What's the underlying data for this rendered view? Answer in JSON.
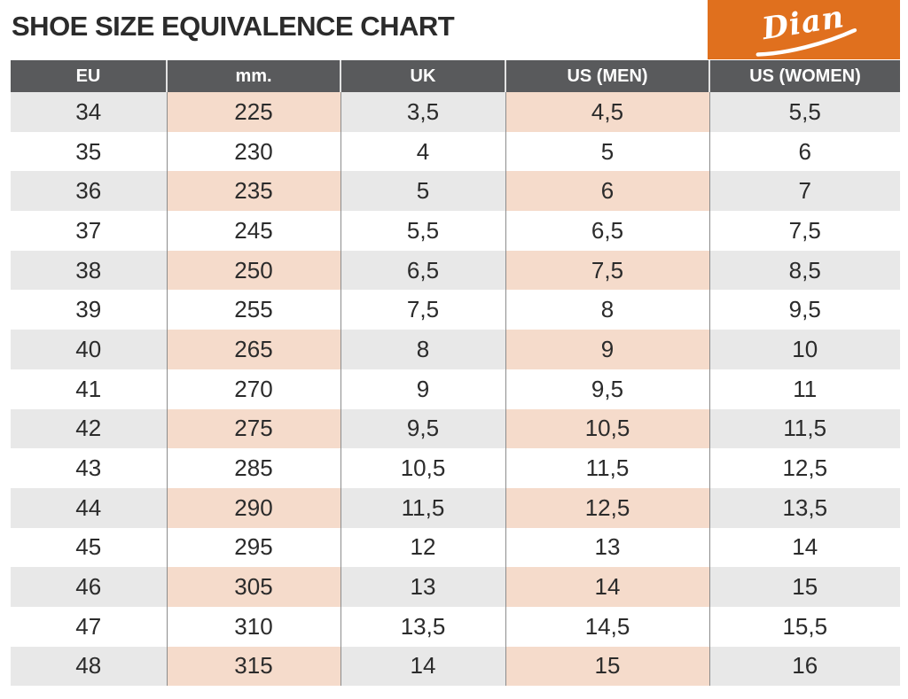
{
  "title": "SHOE SIZE EQUIVALENCE CHART",
  "logo": {
    "brand": "Dian",
    "background_color": "#e0701e",
    "text_color": "#ffffff"
  },
  "colors": {
    "header_background": "#595a5c",
    "header_text": "#ffffff",
    "stripe_gray": "#e8e8e8",
    "stripe_peach": "#f5dbcb",
    "body_text": "#2b2b2b",
    "column_divider": "#8c8c8c"
  },
  "chart_data": {
    "type": "table",
    "title": "SHOE SIZE EQUIVALENCE CHART",
    "columns": [
      "EU",
      "mm.",
      "UK",
      "US (MEN)",
      "US (WOMEN)"
    ],
    "rows": [
      [
        "34",
        "225",
        "3,5",
        "4,5",
        "5,5"
      ],
      [
        "35",
        "230",
        "4",
        "5",
        "6"
      ],
      [
        "36",
        "235",
        "5",
        "6",
        "7"
      ],
      [
        "37",
        "245",
        "5,5",
        "6,5",
        "7,5"
      ],
      [
        "38",
        "250",
        "6,5",
        "7,5",
        "8,5"
      ],
      [
        "39",
        "255",
        "7,5",
        "8",
        "9,5"
      ],
      [
        "40",
        "265",
        "8",
        "9",
        "10"
      ],
      [
        "41",
        "270",
        "9",
        "9,5",
        "11"
      ],
      [
        "42",
        "275",
        "9,5",
        "10,5",
        "11,5"
      ],
      [
        "43",
        "285",
        "10,5",
        "11,5",
        "12,5"
      ],
      [
        "44",
        "290",
        "11,5",
        "12,5",
        "13,5"
      ],
      [
        "45",
        "295",
        "12",
        "13",
        "14"
      ],
      [
        "46",
        "305",
        "13",
        "14",
        "15"
      ],
      [
        "47",
        "310",
        "13,5",
        "14,5",
        "15,5"
      ],
      [
        "48",
        "315",
        "14",
        "15",
        "16"
      ]
    ],
    "layout": {
      "stripe_pattern": "odd rows shaded starting with first data row",
      "shaded_columns_peach": [
        "mm.",
        "US (MEN)"
      ],
      "shaded_columns_gray": [
        "EU",
        "UK",
        "US (WOMEN)"
      ]
    }
  }
}
